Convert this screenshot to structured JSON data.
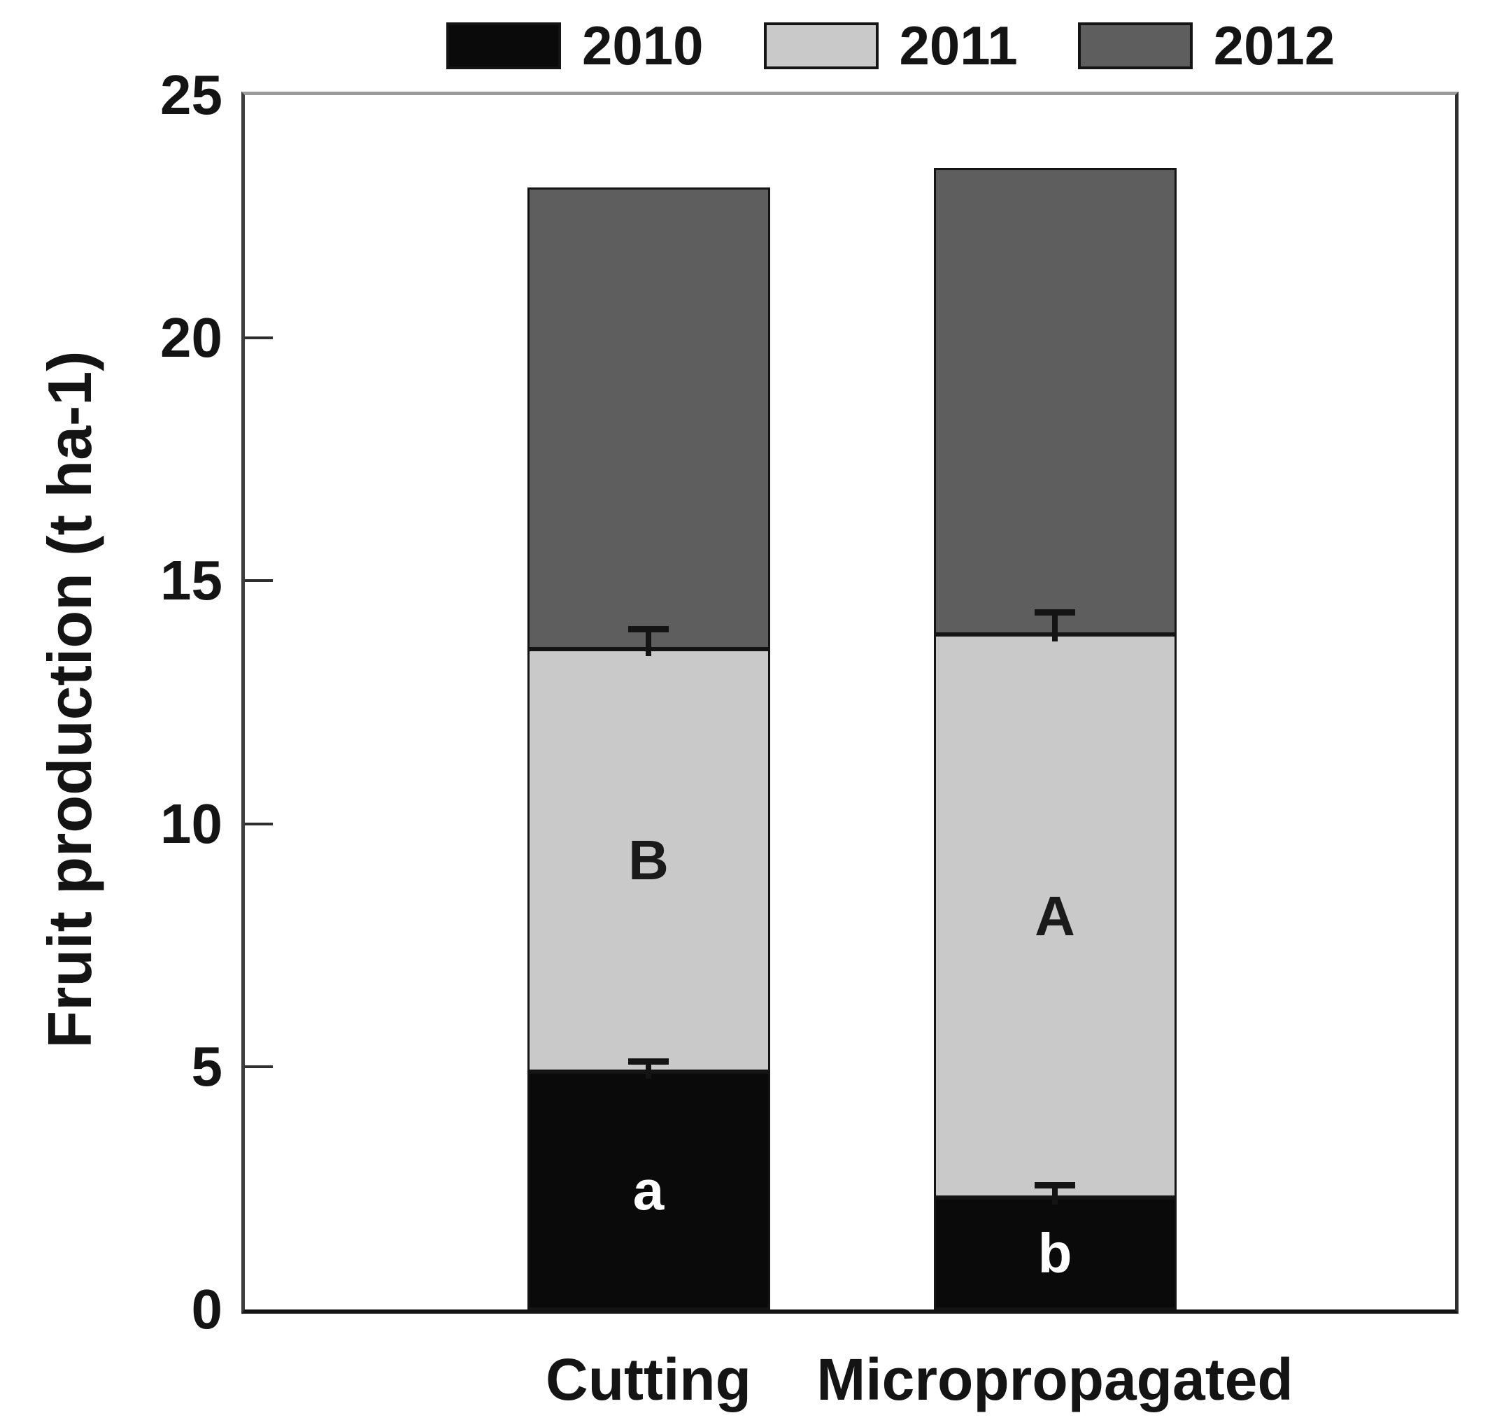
{
  "chart_data": {
    "type": "bar",
    "stacked": true,
    "title": "",
    "ylabel": "Fruit production (t ha-1)",
    "xlabel": "",
    "ylim": [
      0,
      25
    ],
    "yticks": [
      0,
      5,
      10,
      15,
      20,
      25
    ],
    "grid": false,
    "legend_position": "top",
    "categories": [
      "Cutting",
      "Micropropagated"
    ],
    "series": [
      {
        "name": "2010",
        "color": "#0a0a0a",
        "values": [
          4.9,
          2.3
        ],
        "errors_plus": [
          0.2,
          0.25
        ],
        "bar_labels": [
          "a",
          "b"
        ],
        "bar_label_color": "#ffffff"
      },
      {
        "name": "2011",
        "color": "#c9c9c9",
        "values": [
          8.7,
          11.6
        ],
        "errors_plus": [
          0.4,
          0.45
        ],
        "bar_labels": [
          "B",
          "A"
        ],
        "bar_label_color": "#1a1a1a"
      },
      {
        "name": "2012",
        "color": "#5e5e5e",
        "values": [
          9.5,
          9.6
        ],
        "errors_plus": [
          null,
          null
        ],
        "bar_labels": [
          "",
          ""
        ],
        "bar_label_color": "#1a1a1a"
      }
    ],
    "stack_totals": [
      23.1,
      23.5
    ],
    "error_bar_color": "#141414"
  }
}
